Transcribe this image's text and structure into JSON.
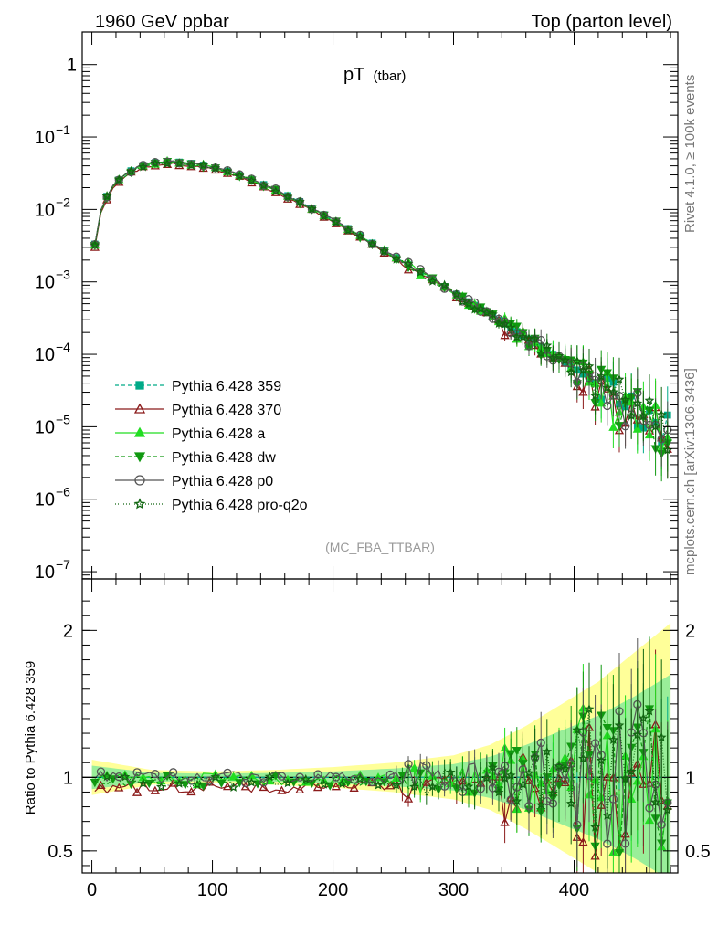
{
  "header": {
    "left_title": "1960 GeV ppbar",
    "right_title": "Top (parton level)"
  },
  "side_labels": {
    "rivet": "Rivet 4.1.0, ≥ 100k events",
    "mcplots": "mcplots.cern.ch [arXiv:1306.3436]"
  },
  "chart_data": {
    "type": "line",
    "title_main": "pT",
    "title_sub": "(tbar)",
    "analysis_label": "(MC_FBA_TTBAR)",
    "xlim": [
      -8,
      486
    ],
    "main_ylim_log10": [
      -7.1,
      0.45
    ],
    "ratio_ylim": [
      0.35,
      2.35
    ],
    "ratio_ylabel": "Ratio to Pythia 6.428 359",
    "x_ticks": [
      0,
      100,
      200,
      300,
      400
    ],
    "main_y_ticks": [
      {
        "exp": 0,
        "label": "1"
      },
      {
        "exp": -1,
        "label": "10",
        "sup": "−1"
      },
      {
        "exp": -2,
        "label": "10",
        "sup": "−2"
      },
      {
        "exp": -3,
        "label": "10",
        "sup": "−3"
      },
      {
        "exp": -4,
        "label": "10",
        "sup": "−4"
      },
      {
        "exp": -5,
        "label": "10",
        "sup": "−5"
      },
      {
        "exp": -6,
        "label": "10",
        "sup": "−6"
      },
      {
        "exp": -7,
        "label": "10",
        "sup": "−7"
      }
    ],
    "ratio_y_ticks": [
      {
        "value": 0.5,
        "label": "0.5"
      },
      {
        "value": 1,
        "label": "1"
      },
      {
        "value": 2,
        "label": "2"
      }
    ],
    "series": [
      {
        "name": "Pythia 6.428 359",
        "color": "#00aa88",
        "dash": "4,3",
        "marker": "square",
        "filled": true,
        "scale": 1.0,
        "seed": 11
      },
      {
        "name": "Pythia 6.428 370",
        "color": "#8b1a1a",
        "dash": "",
        "marker": "triangle",
        "filled": false,
        "scale": 0.93,
        "seed": 23
      },
      {
        "name": "Pythia 6.428 a",
        "color": "#22dd22",
        "dash": "",
        "marker": "triangle",
        "filled": true,
        "scale": 0.99,
        "seed": 37
      },
      {
        "name": "Pythia 6.428 dw",
        "color": "#119911",
        "dash": "4,3",
        "marker": "triangle-down",
        "filled": true,
        "scale": 0.98,
        "seed": 41
      },
      {
        "name": "Pythia 6.428 p0",
        "color": "#555555",
        "dash": "",
        "marker": "circle",
        "filled": false,
        "scale": 1.0,
        "seed": 53
      },
      {
        "name": "Pythia 6.428 pro-q2o",
        "color": "#116611",
        "dash": "1,2",
        "marker": "star",
        "filled": false,
        "scale": 0.97,
        "seed": 67
      }
    ],
    "reference_curve": {
      "description": "log10 of dN/dpT vs pT for the reference sample",
      "x": [
        2.5,
        7.5,
        12.5,
        17.5,
        25,
        35,
        45,
        55,
        65,
        75,
        90,
        110,
        130,
        150,
        170,
        190,
        210,
        230,
        250,
        270,
        290,
        310,
        330,
        350,
        370,
        390,
        410,
        430,
        450,
        470,
        480
      ],
      "log10y": [
        -2.48,
        -2.02,
        -1.82,
        -1.68,
        -1.55,
        -1.44,
        -1.38,
        -1.35,
        -1.34,
        -1.35,
        -1.38,
        -1.46,
        -1.57,
        -1.71,
        -1.87,
        -2.05,
        -2.24,
        -2.44,
        -2.64,
        -2.84,
        -3.04,
        -3.25,
        -3.45,
        -3.66,
        -3.87,
        -4.08,
        -4.3,
        -4.55,
        -4.8,
        -5.0,
        -5.05
      ]
    },
    "ratio_band": {
      "description": "uncertainty band around ratio = 1 (yellow outer, green inner) growing with pT",
      "x": [
        0,
        50,
        100,
        150,
        200,
        250,
        300,
        330,
        360,
        390,
        420,
        450,
        480
      ],
      "outer_halfwidth": [
        0.12,
        0.05,
        0.04,
        0.05,
        0.07,
        0.1,
        0.15,
        0.22,
        0.35,
        0.5,
        0.65,
        0.85,
        1.05
      ],
      "inner_halfwidth": [
        0.08,
        0.03,
        0.025,
        0.03,
        0.04,
        0.06,
        0.09,
        0.14,
        0.22,
        0.32,
        0.42,
        0.55,
        0.7
      ]
    }
  }
}
